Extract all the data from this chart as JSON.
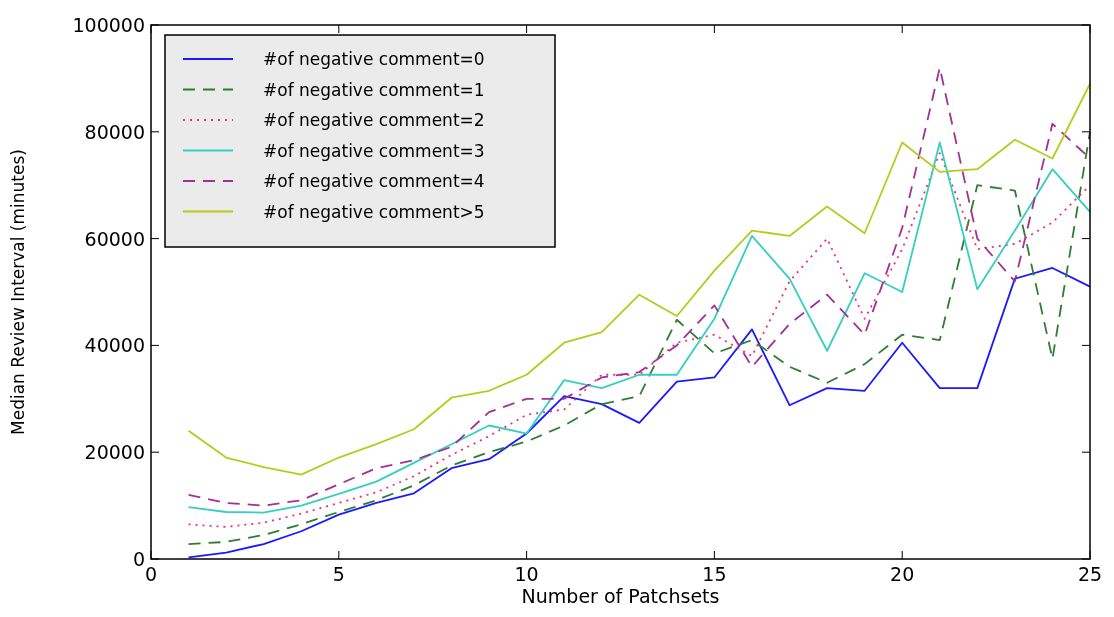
{
  "chart_data": {
    "type": "line",
    "xlabel": "Number of Patchsets",
    "ylabel": "Median Review Interval (minutes)",
    "x": [
      1,
      2,
      3,
      4,
      5,
      6,
      7,
      8,
      9,
      10,
      11,
      12,
      13,
      14,
      15,
      16,
      17,
      18,
      19,
      20,
      21,
      22,
      23,
      24,
      25
    ],
    "xlim": [
      0,
      25
    ],
    "xticks": [
      0,
      5,
      10,
      15,
      20,
      25
    ],
    "ylim": [
      0,
      100000
    ],
    "yticks": [
      0,
      20000,
      40000,
      60000,
      80000,
      100000
    ],
    "grid": false,
    "legend": "top left",
    "series": [
      {
        "name": "#of negative comment=0",
        "color": "#1a1aff",
        "line_style": "solid",
        "values": [
          300,
          1200,
          2800,
          5200,
          8300,
          10500,
          12300,
          17000,
          18700,
          23500,
          30500,
          29000,
          25500,
          33200,
          34000,
          43000,
          28800,
          32000,
          31500,
          40500,
          32000,
          32000,
          52500,
          54500,
          51000
        ]
      },
      {
        "name": "#of negative comment=1",
        "color": "#2e7d32",
        "line_style": "dashed",
        "values": [
          2800,
          3200,
          4500,
          6500,
          8800,
          11000,
          13800,
          17500,
          20000,
          22000,
          25000,
          29000,
          30500,
          44800,
          38500,
          41000,
          36000,
          33000,
          36500,
          42000,
          41000,
          70000,
          69000,
          37500,
          80000
        ]
      },
      {
        "name": "#of negative comment=2",
        "color": "#f0306a",
        "line_style": "dotted",
        "values": [
          6500,
          6000,
          6800,
          8500,
          10500,
          12500,
          15500,
          19500,
          23000,
          27000,
          28000,
          34500,
          34500,
          40500,
          42000,
          38000,
          52000,
          60000,
          45000,
          58000,
          76000,
          58000,
          59000,
          63000,
          70000
        ]
      },
      {
        "name": "#of negative comment=3",
        "color": "#33cfc0",
        "line_style": "solid",
        "values": [
          9700,
          8800,
          8700,
          10000,
          12200,
          14500,
          18000,
          21500,
          25000,
          23500,
          33500,
          32000,
          34500,
          34500,
          45000,
          60500,
          52500,
          39000,
          53500,
          50000,
          78000,
          50500,
          61500,
          73000,
          65000
        ]
      },
      {
        "name": "#of negative comment=4",
        "color": "#a0309a",
        "line_style": "dashed",
        "values": [
          12000,
          10500,
          10000,
          11000,
          14000,
          17000,
          18500,
          21000,
          27500,
          30000,
          30000,
          34000,
          35000,
          40000,
          47500,
          36000,
          44000,
          49500,
          42000,
          62000,
          92000,
          60000,
          52000,
          81500,
          75000
        ]
      },
      {
        "name": "#of negative comment>5",
        "color": "#b5cc1c",
        "line_style": "solid",
        "values": [
          24000,
          19000,
          17200,
          15800,
          19000,
          21500,
          24300,
          30200,
          31500,
          34500,
          40500,
          42500,
          49500,
          45500,
          54000,
          61500,
          60500,
          66000,
          61000,
          78000,
          72500,
          73000,
          78500,
          75000,
          89000
        ]
      }
    ]
  }
}
